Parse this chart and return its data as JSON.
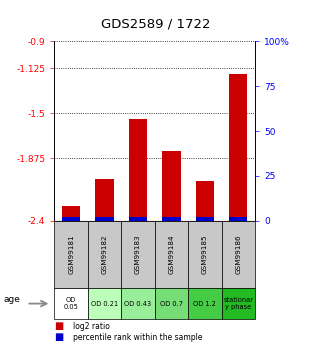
{
  "title": "GDS2589 / 1722",
  "samples": [
    "GSM99181",
    "GSM99182",
    "GSM99183",
    "GSM99184",
    "GSM99185",
    "GSM99186"
  ],
  "log2_ratio": [
    -2.28,
    -2.05,
    -1.55,
    -1.82,
    -2.07,
    -1.17
  ],
  "percentile_rank": [
    2,
    2,
    2,
    2,
    2,
    2
  ],
  "age_labels": [
    "OD\n0.05",
    "OD 0.21",
    "OD 0.43",
    "OD 0.7",
    "OD 1.2",
    "stationar\ny phase"
  ],
  "age_colors": [
    "#ffffff",
    "#bbffbb",
    "#99ee99",
    "#77dd77",
    "#44cc44",
    "#22bb22"
  ],
  "left_yticks": [
    -0.9,
    -1.125,
    -1.5,
    -1.875,
    -2.4
  ],
  "left_yticklabels": [
    "-0.9",
    "-1.125",
    "-1.5",
    "-1.875",
    "-2.4"
  ],
  "right_yticks": [
    0,
    25,
    50,
    75,
    100
  ],
  "right_yticklabels": [
    "0",
    "25",
    "50",
    "75",
    "100%"
  ],
  "ylim_left": [
    -2.4,
    -0.9
  ],
  "ylim_right": [
    0,
    100
  ],
  "bar_color": "#cc0000",
  "pct_color": "#0000cc",
  "sample_bg": "#c8c8c8",
  "bg_white": "#ffffff"
}
